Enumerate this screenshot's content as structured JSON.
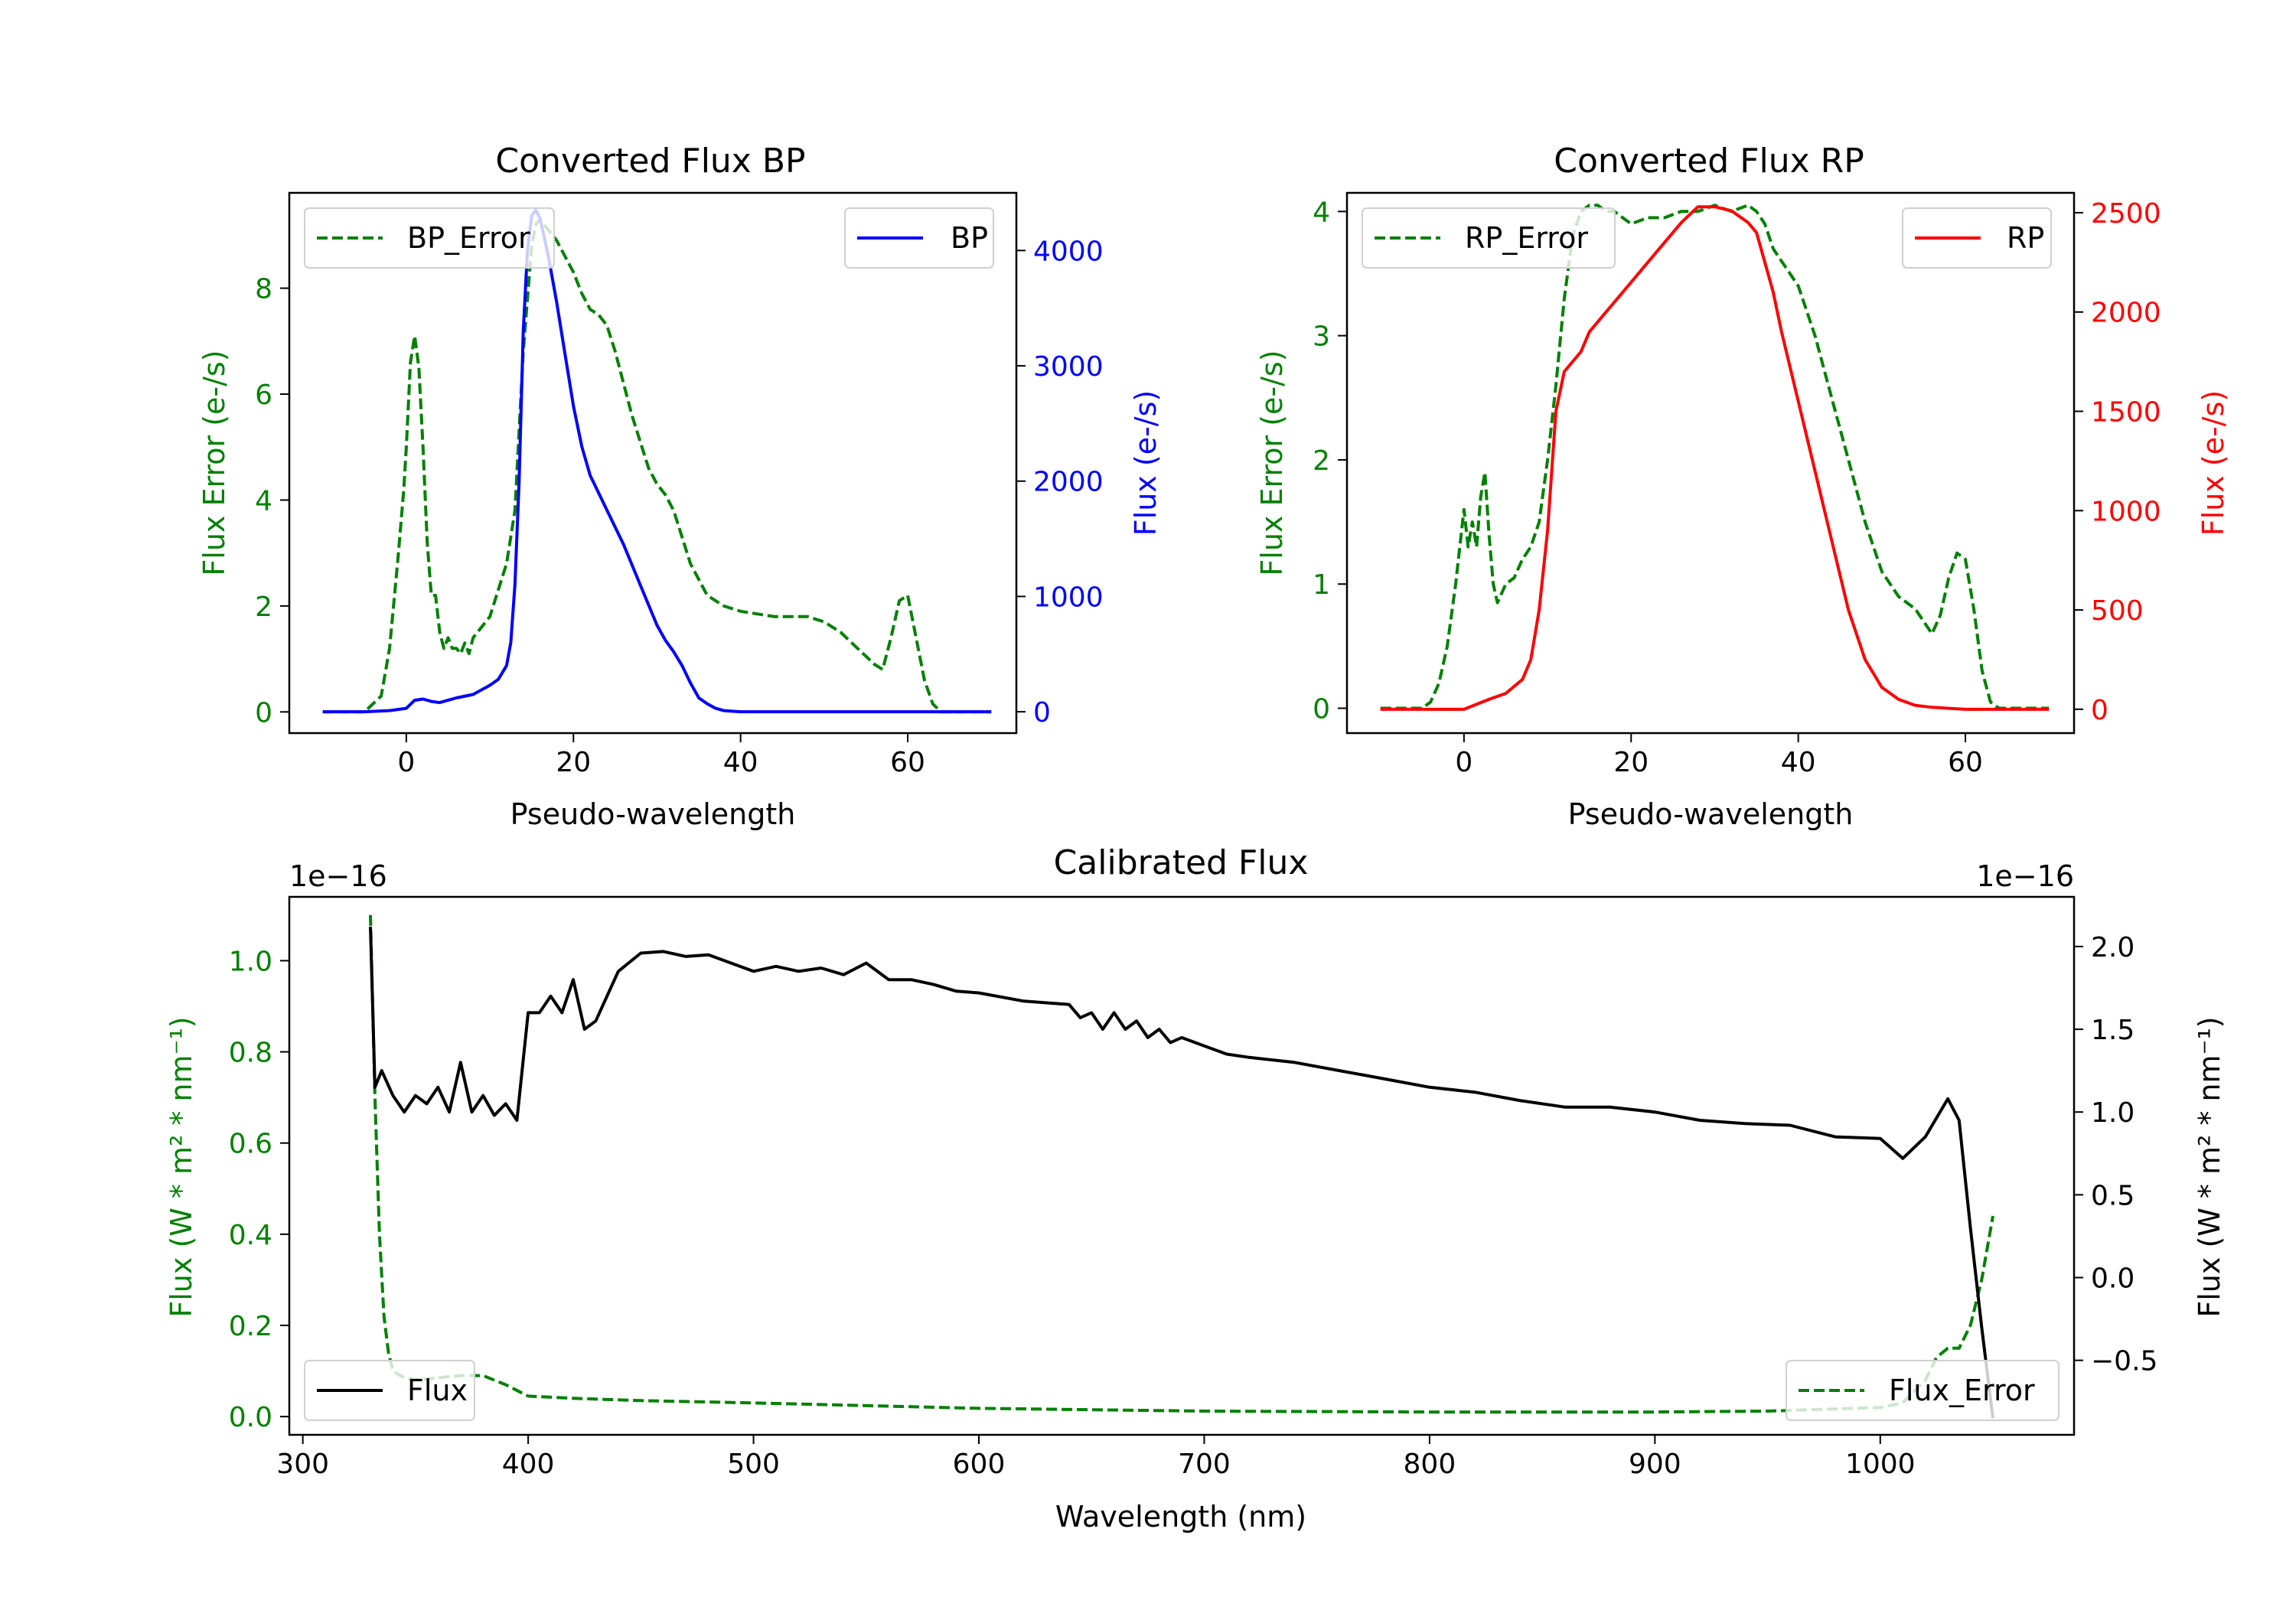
{
  "figure": {
    "background": "#ffffff"
  },
  "chart_data": [
    {
      "id": "bp",
      "type": "line",
      "title": "Converted Flux BP",
      "xlabel": "Pseudo-wavelength",
      "ylabel_left": "Flux Error (e-/s)",
      "ylabel_right": "Flux (e-/s)",
      "xlim": [
        -14,
        73
      ],
      "ylim_left": [
        -0.4,
        9.8
      ],
      "ylim_right": [
        -185,
        4500
      ],
      "xticks": [
        0,
        20,
        40,
        60
      ],
      "xtick_labels": [
        "0",
        "20",
        "40",
        "60"
      ],
      "yticks_left": [
        0,
        2,
        4,
        6,
        8
      ],
      "ytick_labels_left": [
        "0",
        "2",
        "4",
        "6",
        "8"
      ],
      "yticks_right": [
        0,
        1000,
        2000,
        3000,
        4000
      ],
      "ytick_labels_right": [
        "0",
        "1000",
        "2000",
        "3000",
        "4000"
      ],
      "left_color": "#008000",
      "right_color": "#0000ff",
      "legend_left": {
        "label": "BP_Error",
        "position": "upper left",
        "color": "#008000",
        "style": "dashed"
      },
      "legend_right": {
        "label": "BP",
        "position": "upper right",
        "color": "#0000ff",
        "style": "solid"
      },
      "series": [
        {
          "name": "BP_Error",
          "axis": "left",
          "color": "#008000",
          "style": "dashed",
          "x": [
            -10,
            -5,
            -3,
            -2,
            -1,
            -0.3,
            0,
            0.5,
            1,
            1.5,
            2,
            2.5,
            3,
            3.5,
            4,
            4.5,
            5,
            5.5,
            6,
            6.5,
            7,
            7.5,
            8,
            9,
            10,
            11,
            12,
            13,
            14,
            15,
            15.5,
            16,
            17,
            18,
            19,
            20,
            21,
            22,
            23,
            24,
            25,
            26,
            27,
            28,
            29,
            30,
            31,
            32,
            33,
            34,
            35,
            36,
            38,
            40,
            42,
            44,
            46,
            48,
            50,
            52,
            54,
            56,
            57,
            58,
            59,
            60,
            61,
            62,
            63,
            64,
            65,
            67,
            70
          ],
          "y": [
            0.0,
            0.0,
            0.3,
            1.2,
            2.9,
            4.2,
            5.0,
            6.6,
            7.1,
            6.5,
            5.0,
            3.2,
            2.2,
            2.2,
            1.5,
            1.2,
            1.4,
            1.2,
            1.2,
            1.1,
            1.3,
            1.1,
            1.4,
            1.6,
            1.8,
            2.3,
            2.8,
            3.8,
            6.8,
            8.8,
            9.2,
            9.3,
            9.1,
            8.9,
            8.6,
            8.3,
            7.9,
            7.6,
            7.5,
            7.3,
            6.8,
            6.2,
            5.6,
            5.1,
            4.6,
            4.3,
            4.1,
            3.8,
            3.3,
            2.8,
            2.5,
            2.2,
            2.0,
            1.9,
            1.85,
            1.8,
            1.8,
            1.8,
            1.7,
            1.5,
            1.2,
            0.9,
            0.8,
            1.4,
            2.1,
            2.2,
            1.4,
            0.6,
            0.15,
            0.0,
            0.0,
            0.0,
            0.0
          ]
        },
        {
          "name": "BP",
          "axis": "right",
          "color": "#0000ff",
          "style": "solid",
          "x": [
            -10,
            -5,
            -2,
            0,
            1,
            2,
            3,
            4,
            6,
            8,
            10,
            11,
            12,
            12.5,
            13,
            13.5,
            14,
            14.5,
            15,
            15.5,
            16,
            17,
            18,
            19,
            20,
            21,
            22,
            24,
            26,
            28,
            30,
            31,
            32,
            33,
            34,
            35,
            36,
            37,
            38,
            40,
            42,
            44,
            46,
            48,
            50,
            52,
            56,
            60,
            64,
            70
          ],
          "y": [
            0,
            0,
            10,
            30,
            100,
            110,
            90,
            80,
            120,
            150,
            230,
            280,
            400,
            600,
            1100,
            2000,
            3300,
            4000,
            4300,
            4350,
            4280,
            3950,
            3550,
            3100,
            2650,
            2300,
            2050,
            1750,
            1450,
            1100,
            750,
            620,
            520,
            400,
            250,
            120,
            70,
            30,
            10,
            0,
            0,
            0,
            0,
            0,
            0,
            0,
            0,
            0,
            0,
            0
          ]
        }
      ]
    },
    {
      "id": "rp",
      "type": "line",
      "title": "Converted Flux RP",
      "xlabel": "Pseudo-wavelength",
      "ylabel_left": "Flux Error (e-/s)",
      "ylabel_right": "Flux (e-/s)",
      "xlim": [
        -14,
        73
      ],
      "ylim_left": [
        -0.2,
        4.15
      ],
      "ylim_right": [
        -120,
        2600
      ],
      "xticks": [
        0,
        20,
        40,
        60
      ],
      "xtick_labels": [
        "0",
        "20",
        "40",
        "60"
      ],
      "yticks_left": [
        0,
        1,
        2,
        3,
        4
      ],
      "ytick_labels_left": [
        "0",
        "1",
        "2",
        "3",
        "4"
      ],
      "yticks_right": [
        0,
        500,
        1000,
        1500,
        2000,
        2500
      ],
      "ytick_labels_right": [
        "0",
        "500",
        "1000",
        "1500",
        "2000",
        "2500"
      ],
      "left_color": "#008000",
      "right_color": "#ff0000",
      "legend_left": {
        "label": "RP_Error",
        "position": "upper left",
        "color": "#008000",
        "style": "dashed"
      },
      "legend_right": {
        "label": "RP",
        "position": "upper right",
        "color": "#ff0000",
        "style": "solid"
      },
      "series": [
        {
          "name": "RP_Error",
          "axis": "left",
          "color": "#008000",
          "style": "dashed",
          "x": [
            -10,
            -5,
            -4,
            -3,
            -2,
            -1,
            -0.5,
            0,
            0.5,
            1,
            1.5,
            2,
            2.5,
            3,
            3.5,
            4,
            5,
            6,
            7,
            8,
            9,
            10,
            11,
            12,
            13,
            14,
            15,
            16,
            17,
            18,
            19,
            20,
            22,
            24,
            26,
            28,
            30,
            32,
            34,
            35,
            36,
            37,
            38,
            40,
            42,
            44,
            46,
            48,
            50,
            52,
            54,
            56,
            57,
            58,
            59,
            60,
            61,
            62,
            63,
            64,
            66,
            70
          ],
          "y": [
            0.0,
            0.0,
            0.05,
            0.2,
            0.5,
            1.0,
            1.3,
            1.6,
            1.3,
            1.5,
            1.3,
            1.7,
            1.9,
            1.4,
            1.0,
            0.85,
            1.0,
            1.05,
            1.2,
            1.3,
            1.5,
            2.0,
            2.6,
            3.3,
            3.8,
            4.0,
            4.05,
            4.05,
            4.0,
            4.0,
            3.95,
            3.9,
            3.95,
            3.95,
            4.0,
            4.0,
            4.05,
            4.0,
            4.05,
            4.0,
            3.9,
            3.7,
            3.6,
            3.4,
            3.0,
            2.5,
            2.0,
            1.5,
            1.1,
            0.9,
            0.8,
            0.6,
            0.75,
            1.05,
            1.25,
            1.2,
            0.8,
            0.3,
            0.05,
            0.0,
            0.0,
            0.0
          ]
        },
        {
          "name": "RP",
          "axis": "right",
          "color": "#ff0000",
          "style": "solid",
          "x": [
            -10,
            -5,
            0,
            3,
            5,
            7,
            8,
            9,
            10,
            11,
            12,
            13,
            14,
            15,
            16,
            18,
            20,
            22,
            24,
            26,
            28,
            30,
            32,
            34,
            35,
            36,
            37,
            38,
            40,
            42,
            44,
            46,
            48,
            50,
            52,
            54,
            56,
            58,
            60,
            62,
            64,
            70
          ],
          "y": [
            0,
            0,
            0,
            50,
            80,
            150,
            250,
            500,
            900,
            1500,
            1700,
            1750,
            1800,
            1900,
            1950,
            2050,
            2150,
            2250,
            2350,
            2450,
            2530,
            2530,
            2510,
            2450,
            2400,
            2250,
            2100,
            1900,
            1550,
            1200,
            850,
            500,
            250,
            110,
            50,
            20,
            10,
            5,
            0,
            0,
            0,
            0
          ]
        }
      ]
    },
    {
      "id": "cal",
      "type": "line",
      "title": "Calibrated Flux",
      "xlabel": "Wavelength (nm)",
      "ylabel_left": "Flux (W * m² * nm⁻¹)",
      "ylabel_right": "Flux (W * m² * nm⁻¹)",
      "offset_left": "1e−16",
      "offset_right": "1e−16",
      "xlim": [
        294,
        1086
      ],
      "ylim_left": [
        -0.04,
        1.14
      ],
      "ylim_right": [
        -0.95,
        2.3
      ],
      "xticks": [
        300,
        400,
        500,
        600,
        700,
        800,
        900,
        1000
      ],
      "xtick_labels": [
        "300",
        "400",
        "500",
        "600",
        "700",
        "800",
        "900",
        "1000"
      ],
      "yticks_left": [
        0.0,
        0.2,
        0.4,
        0.6,
        0.8,
        1.0
      ],
      "ytick_labels_left": [
        "0.0",
        "0.2",
        "0.4",
        "0.6",
        "0.8",
        "1.0"
      ],
      "yticks_right": [
        -0.5,
        0.0,
        0.5,
        1.0,
        1.5,
        2.0
      ],
      "ytick_labels_right": [
        "−0.5",
        "0.0",
        "0.5",
        "1.0",
        "1.5",
        "2.0"
      ],
      "left_color": "#008000",
      "right_color": "#000000",
      "legend_left": {
        "label": "Flux",
        "position": "lower left",
        "color": "#000000",
        "style": "solid"
      },
      "legend_right": {
        "label": "Flux_Error",
        "position": "lower right",
        "color": "#008000",
        "style": "dashed"
      },
      "series": [
        {
          "name": "Flux_Error",
          "axis": "left",
          "color": "#008000",
          "style": "dashed",
          "x": [
            330,
            332,
            334,
            336,
            338,
            340,
            345,
            350,
            360,
            370,
            380,
            390,
            400,
            420,
            450,
            500,
            600,
            700,
            800,
            900,
            950,
            1000,
            1010,
            1020,
            1025,
            1030,
            1035,
            1040,
            1045,
            1050
          ],
          "y": [
            1.1,
            0.7,
            0.4,
            0.22,
            0.14,
            0.1,
            0.085,
            0.08,
            0.085,
            0.09,
            0.09,
            0.07,
            0.045,
            0.04,
            0.035,
            0.03,
            0.018,
            0.012,
            0.01,
            0.01,
            0.012,
            0.02,
            0.03,
            0.08,
            0.13,
            0.15,
            0.15,
            0.2,
            0.3,
            0.44
          ]
        },
        {
          "name": "Flux",
          "axis": "right",
          "color": "#000000",
          "style": "solid",
          "x": [
            330,
            332,
            335,
            340,
            345,
            350,
            355,
            360,
            365,
            370,
            375,
            380,
            385,
            390,
            395,
            400,
            405,
            410,
            415,
            420,
            425,
            430,
            440,
            450,
            460,
            470,
            480,
            490,
            500,
            510,
            520,
            530,
            540,
            550,
            560,
            570,
            580,
            590,
            600,
            620,
            640,
            645,
            650,
            655,
            660,
            665,
            670,
            675,
            680,
            685,
            690,
            700,
            710,
            720,
            740,
            760,
            780,
            800,
            820,
            840,
            860,
            880,
            900,
            920,
            940,
            960,
            980,
            1000,
            1010,
            1020,
            1030,
            1035,
            1040,
            1045,
            1050
          ],
          "y": [
            2.12,
            1.15,
            1.25,
            1.1,
            1.0,
            1.1,
            1.05,
            1.15,
            1.0,
            1.3,
            1.0,
            1.1,
            0.98,
            1.05,
            0.95,
            1.6,
            1.6,
            1.7,
            1.6,
            1.8,
            1.5,
            1.55,
            1.85,
            1.96,
            1.97,
            1.94,
            1.95,
            1.9,
            1.85,
            1.88,
            1.85,
            1.87,
            1.83,
            1.9,
            1.8,
            1.8,
            1.77,
            1.73,
            1.72,
            1.67,
            1.65,
            1.57,
            1.6,
            1.5,
            1.6,
            1.5,
            1.55,
            1.45,
            1.5,
            1.42,
            1.45,
            1.4,
            1.35,
            1.33,
            1.3,
            1.25,
            1.2,
            1.15,
            1.12,
            1.07,
            1.03,
            1.03,
            1.0,
            0.95,
            0.93,
            0.92,
            0.85,
            0.84,
            0.72,
            0.85,
            1.08,
            0.95,
            0.3,
            -0.3,
            -0.85
          ]
        }
      ]
    }
  ]
}
